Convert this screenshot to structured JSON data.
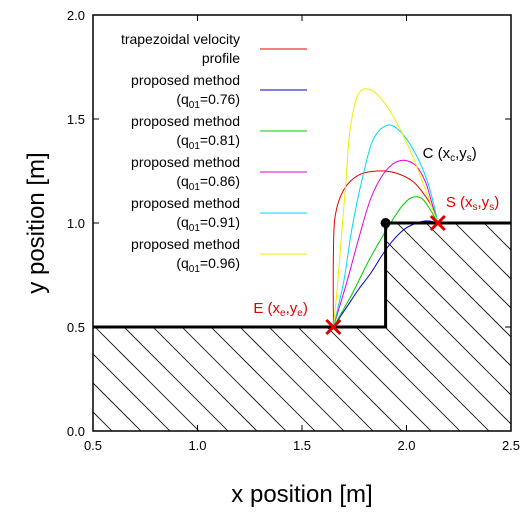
{
  "chart_data": {
    "type": "line",
    "xlabel": "x position [m]",
    "ylabel": "y position [m]",
    "xlim": [
      0.5,
      2.5
    ],
    "ylim": [
      0.0,
      2.0
    ],
    "x_ticks": [
      "0.5",
      "1.0",
      "1.5",
      "2.0",
      "2.5"
    ],
    "y_ticks": [
      "0.0",
      "0.5",
      "1.0",
      "1.5",
      "2.0"
    ],
    "grid": false,
    "legend_position": "top-left",
    "legend": [
      {
        "lines": [
          "trapezoidal velocity",
          "profile"
        ],
        "color": "#e00000"
      },
      {
        "lines": [
          "proposed method",
          "(q01=0.76)"
        ],
        "color": "#0000cc"
      },
      {
        "lines": [
          "proposed method",
          "(q01=0.81)"
        ],
        "color": "#00cc00"
      },
      {
        "lines": [
          "proposed method",
          "(q01=0.86)"
        ],
        "color": "#dd00dd"
      },
      {
        "lines": [
          "proposed method",
          "(q01=0.91)"
        ],
        "color": "#00d8ee"
      },
      {
        "lines": [
          "proposed method",
          "(q01=0.96)"
        ],
        "color": "#eeee00"
      }
    ],
    "obstacle": {
      "boundary": [
        [
          0.5,
          0.5
        ],
        [
          1.9,
          0.5
        ],
        [
          1.9,
          1.0
        ],
        [
          2.5,
          1.0
        ]
      ],
      "hatched": true,
      "color": "#000000"
    },
    "series": [
      {
        "name": "trapezoidal velocity profile",
        "color": "#e00000",
        "x": [
          1.65,
          1.65,
          1.66,
          1.7,
          1.77,
          1.86,
          1.95,
          2.03,
          2.09,
          2.13,
          2.15
        ],
        "y": [
          0.5,
          0.85,
          1.04,
          1.16,
          1.23,
          1.25,
          1.24,
          1.2,
          1.13,
          1.06,
          1.0
        ]
      },
      {
        "name": "proposed method (q01=0.76)",
        "color": "#0000cc",
        "x": [
          1.65,
          1.71,
          1.77,
          1.83,
          1.88,
          1.93,
          1.99,
          2.05,
          2.1,
          2.15
        ],
        "y": [
          0.5,
          0.59,
          0.68,
          0.76,
          0.84,
          0.91,
          0.97,
          1.0,
          1.01,
          1.0
        ]
      },
      {
        "name": "proposed method (q01=0.81)",
        "color": "#00cc00",
        "x": [
          1.65,
          1.74,
          1.82,
          1.9,
          1.97,
          2.02,
          2.07,
          2.11,
          2.15
        ],
        "y": [
          0.5,
          0.66,
          0.82,
          0.96,
          1.07,
          1.12,
          1.12,
          1.07,
          1.0
        ]
      },
      {
        "name": "proposed method (q01=0.86)",
        "color": "#dd00dd",
        "x": [
          1.65,
          1.71,
          1.77,
          1.83,
          1.9,
          1.97,
          2.04,
          2.09,
          2.12,
          2.15
        ],
        "y": [
          0.5,
          0.7,
          0.92,
          1.12,
          1.25,
          1.3,
          1.28,
          1.2,
          1.1,
          1.0
        ]
      },
      {
        "name": "proposed method (q01=0.91)",
        "color": "#00d8ee",
        "x": [
          1.65,
          1.7,
          1.74,
          1.79,
          1.84,
          1.91,
          1.98,
          2.05,
          2.1,
          2.13,
          2.15
        ],
        "y": [
          0.5,
          0.72,
          0.98,
          1.22,
          1.4,
          1.47,
          1.43,
          1.32,
          1.2,
          1.09,
          1.0
        ]
      },
      {
        "name": "proposed method (q01=0.96)",
        "color": "#eeee00",
        "x": [
          1.65,
          1.67,
          1.69,
          1.71,
          1.73,
          1.77,
          1.83,
          1.9,
          1.97,
          2.03,
          2.08,
          2.12,
          2.15
        ],
        "y": [
          0.5,
          0.7,
          0.95,
          1.2,
          1.45,
          1.62,
          1.64,
          1.57,
          1.45,
          1.32,
          1.19,
          1.08,
          1.0
        ]
      }
    ],
    "points": [
      {
        "key": "E",
        "parts": [
          [
            "E (x",
            ""
          ],
          [
            "e",
            "sub"
          ],
          [
            ",y",
            ""
          ],
          [
            "e",
            "sub"
          ],
          [
            ")",
            ""
          ]
        ],
        "x": 1.65,
        "y": 0.5,
        "marker": "x",
        "color": "#e00000",
        "label_side": "left"
      },
      {
        "key": "S",
        "parts": [
          [
            "S (x",
            ""
          ],
          [
            "s",
            "sub"
          ],
          [
            ",y",
            ""
          ],
          [
            "s",
            "sub"
          ],
          [
            ")",
            ""
          ]
        ],
        "x": 2.15,
        "y": 1.0,
        "marker": "x",
        "color": "#e00000",
        "label_side": "right"
      },
      {
        "key": "C",
        "parts": [
          [
            "C (x",
            ""
          ],
          [
            "c",
            "sub"
          ],
          [
            ",y",
            ""
          ],
          [
            "s",
            "sub"
          ],
          [
            ")",
            ""
          ]
        ],
        "x": 1.9,
        "y": 1.0,
        "marker": "dot",
        "color": "#000000",
        "label_side": "upper-right"
      }
    ]
  }
}
